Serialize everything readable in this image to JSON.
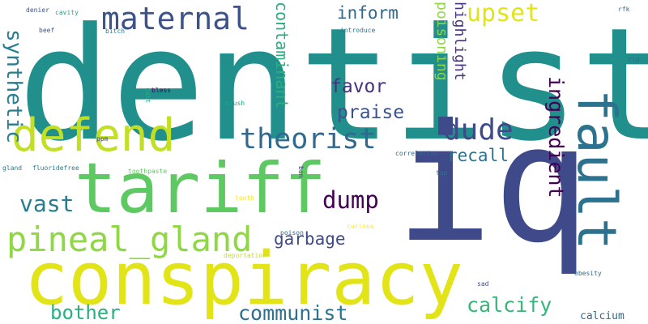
{
  "words": [
    {
      "text": "dentist",
      "color": "#21908d"
    },
    {
      "text": "iq",
      "color": "#3e4a89"
    },
    {
      "text": "conspiracy",
      "color": "#e2e418"
    },
    {
      "text": "tariff",
      "color": "#5ec962"
    },
    {
      "text": "defend",
      "color": "#c2df23"
    },
    {
      "text": "fault",
      "color": "#2c728e"
    },
    {
      "text": "pineal_gland",
      "color": "#8fd744"
    },
    {
      "text": "maternal",
      "color": "#3b528b"
    },
    {
      "text": "theorist",
      "color": "#31688e"
    },
    {
      "text": "dude",
      "color": "#3e4a89"
    },
    {
      "text": "ingredient",
      "color": "#440154"
    },
    {
      "text": "upset",
      "color": "#e2e418"
    },
    {
      "text": "contaminant",
      "color": "#2aaf7f"
    },
    {
      "text": "synthetic",
      "color": "#287d8e"
    },
    {
      "text": "calcify",
      "color": "#35b779"
    },
    {
      "text": "communist",
      "color": "#2c728e"
    },
    {
      "text": "dump",
      "color": "#440154"
    },
    {
      "text": "garbage",
      "color": "#3e4a89"
    },
    {
      "text": "vast",
      "color": "#287d8e"
    },
    {
      "text": "bother",
      "color": "#2aaf7f"
    },
    {
      "text": "praise",
      "color": "#3b528b"
    },
    {
      "text": "favor",
      "color": "#46327e"
    },
    {
      "text": "inform",
      "color": "#31688e"
    },
    {
      "text": "recall",
      "color": "#2c728e"
    },
    {
      "text": "poisoning",
      "color": "#8fd744"
    },
    {
      "text": "highlight",
      "color": "#46327e"
    },
    {
      "text": "calcium",
      "color": "#31688e"
    },
    {
      "text": "denier",
      "color": "#3b528b"
    },
    {
      "text": "cavity",
      "color": "#21a585"
    },
    {
      "text": "beef",
      "color": "#3b528b"
    },
    {
      "text": "bitch",
      "color": "#287d8e"
    },
    {
      "text": "introduce",
      "color": "#2c728e"
    },
    {
      "text": "rfk",
      "color": "#31688e"
    },
    {
      "text": "rig",
      "color": "#31688e"
    },
    {
      "text": "bless",
      "color": "#440154"
    },
    {
      "text": "cult",
      "color": "#2aaf7f"
    },
    {
      "text": "brush",
      "color": "#21a585"
    },
    {
      "text": "ppm",
      "color": "#3e4a89"
    },
    {
      "text": "correlation",
      "color": "#31688e"
    },
    {
      "text": "gland",
      "color": "#287d8e"
    },
    {
      "text": "fluoridefree",
      "color": "#287d8e"
    },
    {
      "text": "toothpaste",
      "color": "#5ec962"
    },
    {
      "text": "ban",
      "color": "#46327e"
    },
    {
      "text": "tap",
      "color": "#2c728e"
    },
    {
      "text": "tooth",
      "color": "#fde725"
    },
    {
      "text": "curious",
      "color": "#fde725"
    },
    {
      "text": "poison",
      "color": "#31688e"
    },
    {
      "text": "deportation",
      "color": "#c2df23"
    },
    {
      "text": "obesity",
      "color": "#31688e"
    },
    {
      "text": "sad",
      "color": "#3e4a89"
    }
  ]
}
